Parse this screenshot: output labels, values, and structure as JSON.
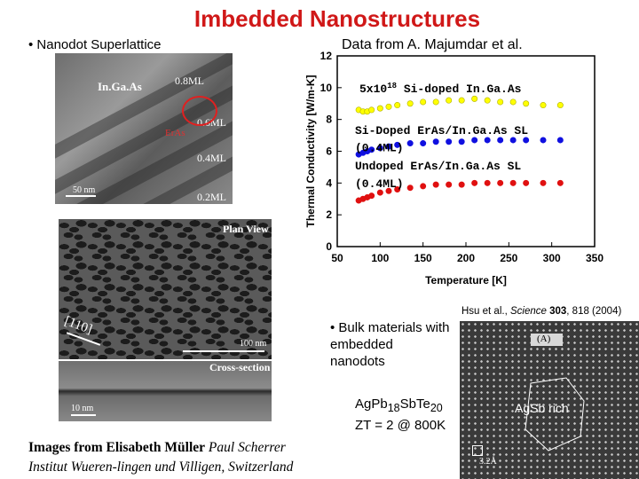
{
  "title": "Imbedded Nanostructures",
  "bullets": {
    "superlattice": "• Nanodot Superlattice",
    "bulk": "• Bulk materials with embedded nanodots"
  },
  "data_source": "Data from A. Majumdar et al.",
  "tem_top": {
    "material": "In.Ga.As",
    "layer_labels": [
      "0.8ML",
      "0.6ML",
      "0.4ML",
      "0.2ML"
    ],
    "dot_label": "ErAs",
    "scale": "50 nm"
  },
  "tem_plan": {
    "plan_view": "Plan View",
    "direction": "[110]",
    "scale": "100 nm"
  },
  "tem_cross": {
    "cross_section": "Cross-section",
    "scale": "10 nm"
  },
  "tem_agpb": {
    "panel": "(A)",
    "label": "AgSb rich",
    "scale": "3.2Å"
  },
  "formula": {
    "text1": "AgPb",
    "sub1": "18",
    "text2": "SbTe",
    "sub2": "20",
    "zt": "ZT = 2 @ 800K"
  },
  "citation": {
    "authors": "Hsu et al., ",
    "journal": "Science",
    "volume": "303",
    "pages": ", 818 (2004)"
  },
  "credit": {
    "line1_bold": "Images from Elisabeth Müller",
    "line1_rest": " Paul Scherrer",
    "line2": "Institut Wueren-lingen und Villigen, Switzerland"
  },
  "chart_data": {
    "type": "scatter",
    "xlabel": "Temperature [K]",
    "ylabel": "Thermal Conductivity [W/m-K]",
    "xlim": [
      50,
      350
    ],
    "ylim": [
      0,
      12
    ],
    "x_ticks": [
      50,
      100,
      150,
      200,
      250,
      300,
      350
    ],
    "y_ticks": [
      0,
      2,
      4,
      6,
      8,
      10,
      12
    ],
    "series": [
      {
        "name": "5x10^18 Si-doped In.Ga.As",
        "color": "#ffff00",
        "x": [
          75,
          80,
          85,
          90,
          100,
          110,
          120,
          135,
          150,
          165,
          180,
          195,
          210,
          225,
          240,
          255,
          270,
          290,
          310
        ],
        "y": [
          8.6,
          8.5,
          8.5,
          8.6,
          8.7,
          8.8,
          8.9,
          9.0,
          9.1,
          9.1,
          9.2,
          9.2,
          9.3,
          9.2,
          9.1,
          9.1,
          9.0,
          8.9,
          8.9
        ]
      },
      {
        "name": "Si-Doped ErAs/In.Ga.As SL (0.4ML)",
        "color": "#1010e0",
        "x": [
          75,
          80,
          85,
          90,
          100,
          110,
          120,
          135,
          150,
          165,
          180,
          195,
          210,
          225,
          240,
          255,
          270,
          290,
          310
        ],
        "y": [
          5.8,
          5.9,
          6.0,
          6.1,
          6.2,
          6.3,
          6.4,
          6.5,
          6.5,
          6.6,
          6.6,
          6.6,
          6.7,
          6.7,
          6.7,
          6.7,
          6.7,
          6.7,
          6.7
        ]
      },
      {
        "name": "Undoped ErAs/In.Ga.As SL (0.4ML)",
        "color": "#e01010",
        "x": [
          75,
          80,
          85,
          90,
          100,
          110,
          120,
          135,
          150,
          165,
          180,
          195,
          210,
          225,
          240,
          255,
          270,
          290,
          310
        ],
        "y": [
          2.9,
          3.0,
          3.1,
          3.2,
          3.4,
          3.5,
          3.6,
          3.7,
          3.8,
          3.9,
          3.9,
          3.9,
          4.0,
          4.0,
          4.0,
          4.0,
          4.0,
          4.0,
          4.0
        ]
      }
    ],
    "legend_labels": {
      "s1a": "5x10",
      "s1sup": "18",
      "s1b": " Si-doped In.Ga.As",
      "s2a": "Si-Doped ErAs/In.Ga.As SL",
      "s2b": "(0.4ML)",
      "s3a": "Undoped ErAs/In.Ga.As SL",
      "s3b": "(0.4ML)"
    }
  }
}
